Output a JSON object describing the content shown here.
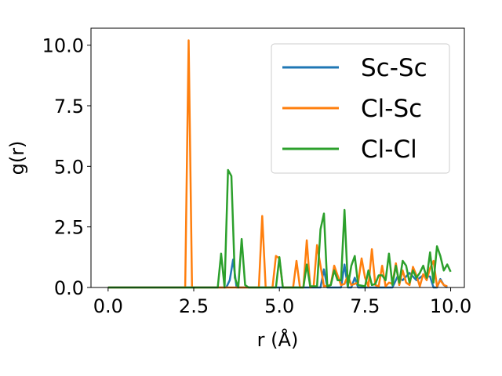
{
  "chart_data": {
    "type": "line",
    "xlabel": "r (Å)",
    "ylabel": "g(r)",
    "xlim": [
      -0.5,
      10.4
    ],
    "ylim": [
      0,
      10.7
    ],
    "x_ticks": [
      0.0,
      2.5,
      5.0,
      7.5,
      10.0
    ],
    "x_tick_labels": [
      "0.0",
      "2.5",
      "5.0",
      "7.5",
      "10.0"
    ],
    "y_ticks": [
      0.0,
      2.5,
      5.0,
      7.5,
      10.0
    ],
    "y_tick_labels": [
      "0.0",
      "2.5",
      "5.0",
      "7.5",
      "10.0"
    ],
    "legend_position": "top-right",
    "grid": false,
    "series": [
      {
        "name": "Sc-Sc",
        "color": "#1f77b4",
        "points": [
          [
            0.0,
            0
          ],
          [
            3.45,
            0
          ],
          [
            3.55,
            0.3
          ],
          [
            3.65,
            1.15
          ],
          [
            3.75,
            0
          ],
          [
            6.2,
            0
          ],
          [
            6.3,
            0.75
          ],
          [
            6.4,
            0
          ],
          [
            6.8,
            0
          ],
          [
            6.9,
            0.95
          ],
          [
            7.0,
            0
          ],
          [
            7.1,
            0
          ],
          [
            7.2,
            0.4
          ],
          [
            7.3,
            0
          ],
          [
            8.3,
            0
          ],
          [
            8.45,
            0.45
          ],
          [
            8.6,
            0.3
          ],
          [
            8.8,
            0.6
          ],
          [
            9.0,
            0.3
          ],
          [
            9.2,
            0.5
          ],
          [
            9.4,
            0.45
          ],
          [
            9.5,
            0
          ],
          [
            9.6,
            0
          ],
          [
            9.7,
            0.35
          ],
          [
            9.8,
            0.1
          ],
          [
            9.9,
            0
          ]
        ]
      },
      {
        "name": "Cl-Sc",
        "color": "#ff7f0e",
        "points": [
          [
            0.0,
            0
          ],
          [
            2.25,
            0
          ],
          [
            2.35,
            10.2
          ],
          [
            2.45,
            0
          ],
          [
            4.4,
            0
          ],
          [
            4.5,
            2.95
          ],
          [
            4.6,
            0
          ],
          [
            4.8,
            0
          ],
          [
            4.9,
            1.3
          ],
          [
            5.0,
            1.2
          ],
          [
            5.1,
            0
          ],
          [
            5.4,
            0
          ],
          [
            5.5,
            1.1
          ],
          [
            5.6,
            0
          ],
          [
            5.7,
            0
          ],
          [
            5.8,
            1.95
          ],
          [
            5.9,
            0
          ],
          [
            6.0,
            0.05
          ],
          [
            6.1,
            1.75
          ],
          [
            6.2,
            0.9
          ],
          [
            6.3,
            0.05
          ],
          [
            6.5,
            0.1
          ],
          [
            6.6,
            0.9
          ],
          [
            6.7,
            0.5
          ],
          [
            6.8,
            0.1
          ],
          [
            6.9,
            0.15
          ],
          [
            7.0,
            0.5
          ],
          [
            7.1,
            0.1
          ],
          [
            7.3,
            0.2
          ],
          [
            7.4,
            1.2
          ],
          [
            7.5,
            0.4
          ],
          [
            7.6,
            0.05
          ],
          [
            7.7,
            1.58
          ],
          [
            7.8,
            0.1
          ],
          [
            7.9,
            0.05
          ],
          [
            8.0,
            0.9
          ],
          [
            8.1,
            0.05
          ],
          [
            8.2,
            0.2
          ],
          [
            8.3,
            0.15
          ],
          [
            8.4,
            1.0
          ],
          [
            8.5,
            0.1
          ],
          [
            8.6,
            0.7
          ],
          [
            8.7,
            0.2
          ],
          [
            8.8,
            0.1
          ],
          [
            8.9,
            0.85
          ],
          [
            9.0,
            0.5
          ],
          [
            9.1,
            0.05
          ],
          [
            9.2,
            0.55
          ],
          [
            9.3,
            0.3
          ],
          [
            9.4,
            0.8
          ],
          [
            9.5,
            1.1
          ],
          [
            9.6,
            0.05
          ],
          [
            9.7,
            0.3
          ],
          [
            9.8,
            0.1
          ],
          [
            9.9,
            0.05
          ]
        ]
      },
      {
        "name": "Cl-Cl",
        "color": "#2ca02c",
        "points": [
          [
            0.0,
            0
          ],
          [
            3.2,
            0
          ],
          [
            3.3,
            1.4
          ],
          [
            3.4,
            0
          ],
          [
            3.5,
            4.85
          ],
          [
            3.6,
            4.6
          ],
          [
            3.7,
            0.4
          ],
          [
            3.8,
            0
          ],
          [
            3.9,
            2.0
          ],
          [
            4.0,
            0.1
          ],
          [
            4.1,
            0
          ],
          [
            4.9,
            0
          ],
          [
            5.0,
            1.25
          ],
          [
            5.1,
            0
          ],
          [
            5.7,
            0
          ],
          [
            5.8,
            0.95
          ],
          [
            5.9,
            0.05
          ],
          [
            6.1,
            0.05
          ],
          [
            6.2,
            2.4
          ],
          [
            6.3,
            3.05
          ],
          [
            6.4,
            0.05
          ],
          [
            6.5,
            0.1
          ],
          [
            6.6,
            0.7
          ],
          [
            6.7,
            0.3
          ],
          [
            6.8,
            0.3
          ],
          [
            6.9,
            3.2
          ],
          [
            7.0,
            0.05
          ],
          [
            7.1,
            0.9
          ],
          [
            7.2,
            1.3
          ],
          [
            7.3,
            0.1
          ],
          [
            7.5,
            0.05
          ],
          [
            7.6,
            0.7
          ],
          [
            7.7,
            0.1
          ],
          [
            7.8,
            0.15
          ],
          [
            7.9,
            0.5
          ],
          [
            8.0,
            0.5
          ],
          [
            8.1,
            0.3
          ],
          [
            8.2,
            1.4
          ],
          [
            8.3,
            0.1
          ],
          [
            8.4,
            0.9
          ],
          [
            8.5,
            0.2
          ],
          [
            8.6,
            1.1
          ],
          [
            8.7,
            0.9
          ],
          [
            8.8,
            0.2
          ],
          [
            8.9,
            0.7
          ],
          [
            9.0,
            0.4
          ],
          [
            9.1,
            0.6
          ],
          [
            9.2,
            0.9
          ],
          [
            9.3,
            0.4
          ],
          [
            9.4,
            1.45
          ],
          [
            9.5,
            0.2
          ],
          [
            9.6,
            1.7
          ],
          [
            9.7,
            1.3
          ],
          [
            9.8,
            0.7
          ],
          [
            9.9,
            0.95
          ],
          [
            10.0,
            0.65
          ]
        ]
      }
    ]
  }
}
